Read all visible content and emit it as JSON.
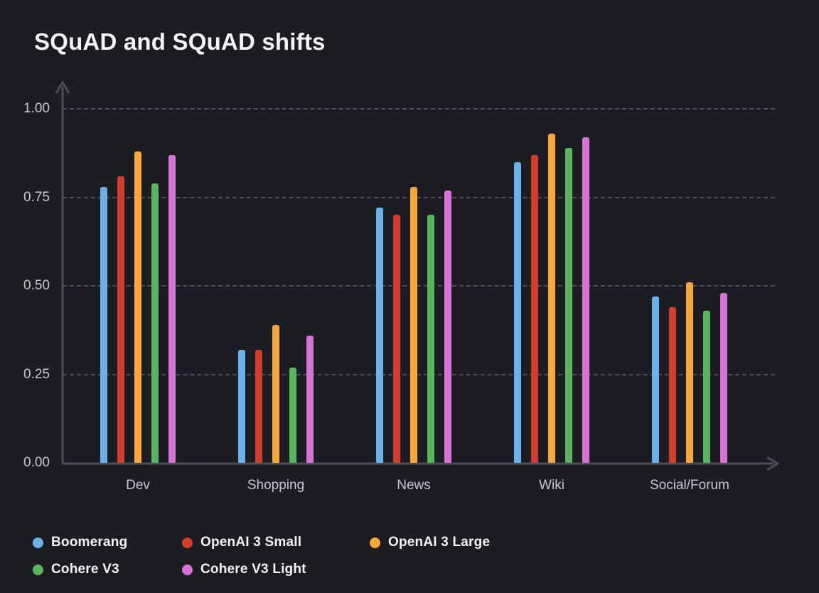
{
  "page": {
    "background_color": "#1b1d23",
    "axis_color": "#4b4e57",
    "grid_color": "#575a63",
    "tick_label_color": "#c5c8ce",
    "title_color": "#f2f3f6"
  },
  "chart_data": {
    "type": "bar",
    "title": "SQuAD and SQuAD shifts",
    "xlabel": "",
    "ylabel": "",
    "ylim": [
      0,
      1.05
    ],
    "grid": "dashed horizontal",
    "legend_position": "bottom-left",
    "categories": [
      "Dev",
      "Shopping",
      "News",
      "Wiki",
      "Social/Forum"
    ],
    "yticks": [
      {
        "label": "1.00",
        "value": 1.0
      },
      {
        "label": "0.75",
        "value": 0.75
      },
      {
        "label": "0.50",
        "value": 0.5
      },
      {
        "label": "0.25",
        "value": 0.25
      },
      {
        "label": "0.00",
        "value": 0.0
      }
    ],
    "series": [
      {
        "name": "Boomerang",
        "color": "#6cb0ea",
        "values": [
          0.78,
          0.32,
          0.72,
          0.85,
          0.47
        ]
      },
      {
        "name": "OpenAI 3 Small",
        "color": "#d23e2e",
        "values": [
          0.81,
          0.32,
          0.7,
          0.87,
          0.44
        ]
      },
      {
        "name": "OpenAI 3 Large",
        "color": "#f7a63c",
        "values": [
          0.88,
          0.39,
          0.78,
          0.93,
          0.51
        ]
      },
      {
        "name": "Cohere V3",
        "color": "#5bb55e",
        "values": [
          0.79,
          0.27,
          0.7,
          0.89,
          0.43
        ]
      },
      {
        "name": "Cohere V3 Light",
        "color": "#d773d7",
        "values": [
          0.87,
          0.36,
          0.77,
          0.92,
          0.48
        ]
      }
    ]
  }
}
